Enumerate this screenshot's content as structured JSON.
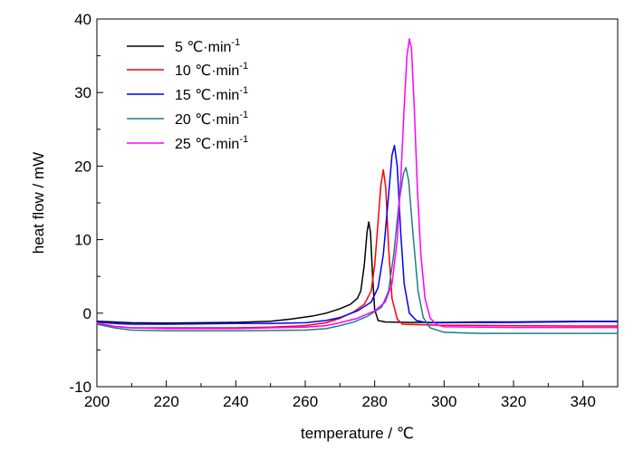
{
  "chart_data": {
    "type": "line",
    "title": "",
    "xlabel": "temperature / ℃",
    "ylabel": "heat flow / mW",
    "xlim": [
      200,
      350
    ],
    "ylim": [
      -10,
      40
    ],
    "x_ticks": [
      200,
      220,
      240,
      260,
      280,
      300,
      320,
      340
    ],
    "y_ticks": [
      -10,
      0,
      10,
      20,
      30,
      40
    ],
    "grid": false,
    "legend_position": "top-left",
    "series": [
      {
        "name": "5 ℃·min",
        "name_sup": "-1",
        "color": "#000000",
        "points": [
          [
            200,
            -1.1
          ],
          [
            205,
            -1.2
          ],
          [
            210,
            -1.3
          ],
          [
            220,
            -1.35
          ],
          [
            230,
            -1.3
          ],
          [
            240,
            -1.25
          ],
          [
            250,
            -1.1
          ],
          [
            256,
            -0.8
          ],
          [
            262,
            -0.4
          ],
          [
            266,
            0
          ],
          [
            270,
            0.6
          ],
          [
            273,
            1.2
          ],
          [
            275,
            2.0
          ],
          [
            276,
            3.0
          ],
          [
            277,
            6.5
          ],
          [
            277.8,
            11.0
          ],
          [
            278.3,
            12.4
          ],
          [
            278.8,
            11.0
          ],
          [
            279.4,
            5.0
          ],
          [
            280,
            0.5
          ],
          [
            281,
            -1.0
          ],
          [
            283,
            -1.2
          ],
          [
            290,
            -1.25
          ],
          [
            300,
            -1.25
          ],
          [
            310,
            -1.2
          ],
          [
            320,
            -1.2
          ],
          [
            330,
            -1.15
          ],
          [
            340,
            -1.1
          ],
          [
            350,
            -1.1
          ]
        ]
      },
      {
        "name": "10 ℃·min",
        "name_sup": "-1",
        "color": "#ff0000",
        "points": [
          [
            200,
            -1.5
          ],
          [
            205,
            -1.8
          ],
          [
            210,
            -2.0
          ],
          [
            220,
            -2.0
          ],
          [
            230,
            -2.0
          ],
          [
            240,
            -2.0
          ],
          [
            250,
            -1.9
          ],
          [
            260,
            -1.7
          ],
          [
            266,
            -1.3
          ],
          [
            270,
            -0.7
          ],
          [
            274,
            0.2
          ],
          [
            277,
            1.2
          ],
          [
            279,
            3.0
          ],
          [
            280,
            6.5
          ],
          [
            281,
            12.5
          ],
          [
            281.8,
            17.5
          ],
          [
            282.5,
            19.5
          ],
          [
            283.2,
            17.0
          ],
          [
            284,
            9.0
          ],
          [
            285,
            2.0
          ],
          [
            286.5,
            -0.8
          ],
          [
            288,
            -1.5
          ],
          [
            300,
            -1.65
          ],
          [
            320,
            -1.7
          ],
          [
            340,
            -1.75
          ],
          [
            350,
            -1.75
          ]
        ]
      },
      {
        "name": "15 ℃·min",
        "name_sup": "-1",
        "color": "#0000ff",
        "points": [
          [
            200,
            -1.2
          ],
          [
            205,
            -1.4
          ],
          [
            210,
            -1.5
          ],
          [
            220,
            -1.5
          ],
          [
            230,
            -1.45
          ],
          [
            240,
            -1.4
          ],
          [
            250,
            -1.4
          ],
          [
            260,
            -1.3
          ],
          [
            266,
            -1.0
          ],
          [
            270,
            -0.6
          ],
          [
            275,
            0.3
          ],
          [
            279,
            1.5
          ],
          [
            281,
            3.5
          ],
          [
            282.5,
            8.0
          ],
          [
            284,
            16.0
          ],
          [
            285,
            21.5
          ],
          [
            285.7,
            22.8
          ],
          [
            286.5,
            20.0
          ],
          [
            287.5,
            11.0
          ],
          [
            288.5,
            4.0
          ],
          [
            290,
            0.0
          ],
          [
            292,
            -1.0
          ],
          [
            295,
            -1.3
          ],
          [
            300,
            -1.3
          ],
          [
            320,
            -1.25
          ],
          [
            340,
            -1.15
          ],
          [
            350,
            -1.15
          ]
        ]
      },
      {
        "name": "20 ℃·min",
        "name_sup": "-1",
        "color": "#1e7f7f",
        "points": [
          [
            200,
            -1.5
          ],
          [
            205,
            -2.0
          ],
          [
            210,
            -2.3
          ],
          [
            220,
            -2.4
          ],
          [
            230,
            -2.4
          ],
          [
            240,
            -2.4
          ],
          [
            250,
            -2.35
          ],
          [
            260,
            -2.3
          ],
          [
            266,
            -2.1
          ],
          [
            270,
            -1.7
          ],
          [
            274,
            -1.2
          ],
          [
            278,
            -0.4
          ],
          [
            282,
            0.8
          ],
          [
            284,
            3.0
          ],
          [
            285.5,
            8.0
          ],
          [
            287,
            15.0
          ],
          [
            288.3,
            19.0
          ],
          [
            289,
            19.8
          ],
          [
            289.8,
            18.0
          ],
          [
            291,
            11.0
          ],
          [
            292.5,
            3.0
          ],
          [
            294,
            -0.6
          ],
          [
            296,
            -2.0
          ],
          [
            300,
            -2.6
          ],
          [
            310,
            -2.75
          ],
          [
            320,
            -2.75
          ],
          [
            330,
            -2.75
          ],
          [
            340,
            -2.75
          ],
          [
            350,
            -2.75
          ]
        ]
      },
      {
        "name": "25 ℃·min",
        "name_sup": "-1",
        "color": "#ff00ff",
        "points": [
          [
            200,
            -1.3
          ],
          [
            205,
            -1.8
          ],
          [
            210,
            -2.0
          ],
          [
            220,
            -2.1
          ],
          [
            230,
            -2.1
          ],
          [
            240,
            -2.1
          ],
          [
            250,
            -2.0
          ],
          [
            260,
            -1.9
          ],
          [
            266,
            -1.7
          ],
          [
            270,
            -1.3
          ],
          [
            275,
            -0.7
          ],
          [
            280,
            0.3
          ],
          [
            283,
            1.5
          ],
          [
            285,
            4.0
          ],
          [
            286.5,
            10.0
          ],
          [
            287.5,
            18.0
          ],
          [
            288.5,
            28.0
          ],
          [
            289.3,
            35.0
          ],
          [
            290,
            37.3
          ],
          [
            290.6,
            36.0
          ],
          [
            291.4,
            28.0
          ],
          [
            292.3,
            17.0
          ],
          [
            293.3,
            8.0
          ],
          [
            294.5,
            2.0
          ],
          [
            296,
            -0.7
          ],
          [
            298,
            -1.6
          ],
          [
            300,
            -1.85
          ],
          [
            320,
            -1.95
          ],
          [
            340,
            -1.95
          ],
          [
            350,
            -1.95
          ]
        ]
      }
    ]
  }
}
